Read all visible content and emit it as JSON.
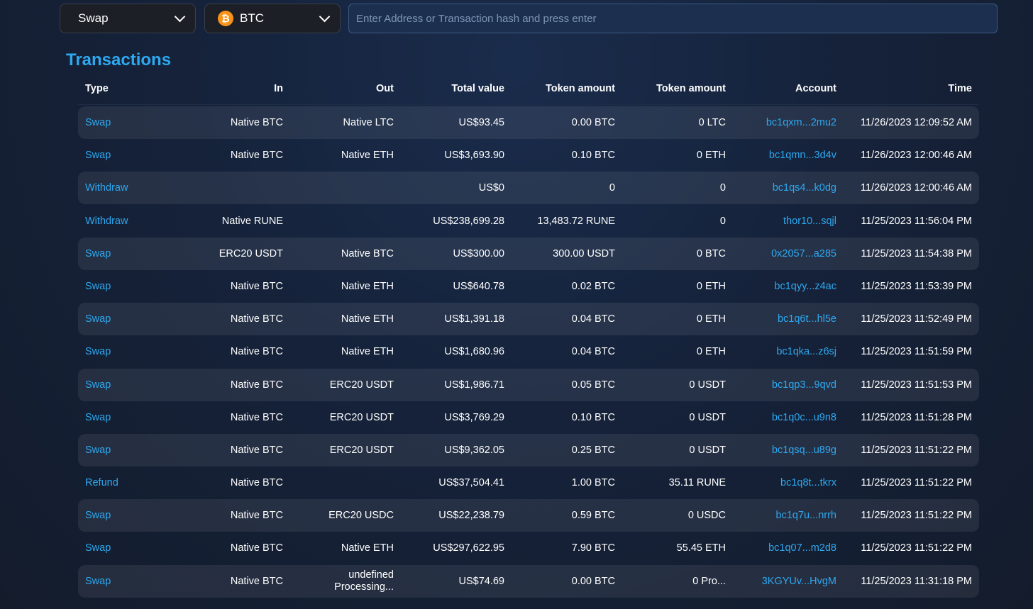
{
  "filters": {
    "type_select": "Swap",
    "asset_select": "BTC",
    "asset_icon_glyph": "₿",
    "search_placeholder": "Enter Address or Transaction hash and press enter"
  },
  "section_title": "Transactions",
  "colors": {
    "accent": "#2ea8ef",
    "btc": "#f7931a"
  },
  "table": {
    "headers": [
      "Type",
      "In",
      "Out",
      "Total value",
      "Token amount",
      "Token amount",
      "Account",
      "Time"
    ],
    "rows": [
      [
        "Swap",
        "Native BTC",
        "Native LTC",
        "US$93.45",
        "0.00 BTC",
        "0 LTC",
        "bc1qxm...2mu2",
        "11/26/2023 12:09:52 AM"
      ],
      [
        "Swap",
        "Native BTC",
        "Native ETH",
        "US$3,693.90",
        "0.10 BTC",
        "0 ETH",
        "bc1qmn...3d4v",
        "11/26/2023 12:00:46 AM"
      ],
      [
        "Withdraw",
        "",
        "",
        "US$0",
        "0",
        "0",
        "bc1qs4...k0dg",
        "11/26/2023 12:00:46 AM"
      ],
      [
        "Withdraw",
        "Native RUNE",
        "",
        "US$238,699.28",
        "13,483.72 RUNE",
        "0",
        "thor10...sqjl",
        "11/25/2023 11:56:04 PM"
      ],
      [
        "Swap",
        "ERC20 USDT",
        "Native BTC",
        "US$300.00",
        "300.00 USDT",
        "0 BTC",
        "0x2057...a285",
        "11/25/2023 11:54:38 PM"
      ],
      [
        "Swap",
        "Native BTC",
        "Native ETH",
        "US$640.78",
        "0.02 BTC",
        "0 ETH",
        "bc1qyy...z4ac",
        "11/25/2023 11:53:39 PM"
      ],
      [
        "Swap",
        "Native BTC",
        "Native ETH",
        "US$1,391.18",
        "0.04 BTC",
        "0 ETH",
        "bc1q6t...hl5e",
        "11/25/2023 11:52:49 PM"
      ],
      [
        "Swap",
        "Native BTC",
        "Native ETH",
        "US$1,680.96",
        "0.04 BTC",
        "0 ETH",
        "bc1qka...z6sj",
        "11/25/2023 11:51:59 PM"
      ],
      [
        "Swap",
        "Native BTC",
        "ERC20 USDT",
        "US$1,986.71",
        "0.05 BTC",
        "0 USDT",
        "bc1qp3...9qvd",
        "11/25/2023 11:51:53 PM"
      ],
      [
        "Swap",
        "Native BTC",
        "ERC20 USDT",
        "US$3,769.29",
        "0.10 BTC",
        "0 USDT",
        "bc1q0c...u9n8",
        "11/25/2023 11:51:28 PM"
      ],
      [
        "Swap",
        "Native BTC",
        "ERC20 USDT",
        "US$9,362.05",
        "0.25 BTC",
        "0 USDT",
        "bc1qsq...u89g",
        "11/25/2023 11:51:22 PM"
      ],
      [
        "Refund",
        "Native BTC",
        "",
        "US$37,504.41",
        "1.00 BTC",
        "35.11 RUNE",
        "bc1q8t...tkrx",
        "11/25/2023 11:51:22 PM"
      ],
      [
        "Swap",
        "Native BTC",
        "ERC20 USDC",
        "US$22,238.79",
        "0.59 BTC",
        "0 USDC",
        "bc1q7u...nrrh",
        "11/25/2023 11:51:22 PM"
      ],
      [
        "Swap",
        "Native BTC",
        "Native ETH",
        "US$297,622.95",
        "7.90 BTC",
        "55.45 ETH",
        "bc1q07...m2d8",
        "11/25/2023 11:51:22 PM"
      ],
      [
        "Swap",
        "Native BTC",
        "undefined Processing...",
        "US$74.69",
        "0.00 BTC",
        "0 Pro...",
        "3KGYUv...HvgM",
        "11/25/2023 11:31:18 PM"
      ]
    ]
  }
}
